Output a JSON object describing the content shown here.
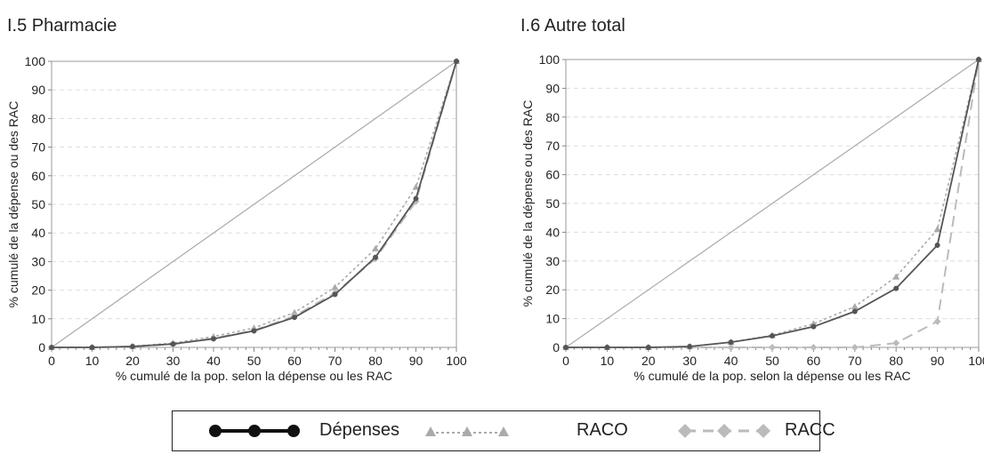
{
  "colors": {
    "depenses": "#555555",
    "raco": "#aaaaaa",
    "racc": "#bbbbbb",
    "diagonal": "#aaaaaa",
    "grid": "#dddddd",
    "axis": "#888888"
  },
  "legend": {
    "items": [
      {
        "label": "Dépenses",
        "style": "solid-circle"
      },
      {
        "label": "RACO",
        "style": "dotted-triangle"
      },
      {
        "label": "RACC",
        "style": "dashed-diamond"
      }
    ]
  },
  "chart_data": [
    {
      "type": "line",
      "title": "I.5 Pharmacie",
      "xlabel": "% cumulé de la pop. selon la dépense ou les RAC",
      "ylabel": "% cumulé de la dépense ou des RAC",
      "xlim": [
        0,
        100
      ],
      "ylim": [
        0,
        100
      ],
      "xticks": [
        0,
        10,
        20,
        30,
        40,
        50,
        60,
        70,
        80,
        90,
        100
      ],
      "yticks": [
        0,
        10,
        20,
        30,
        40,
        50,
        60,
        70,
        80,
        90,
        100
      ],
      "grid": true,
      "x": [
        0,
        10,
        20,
        30,
        40,
        50,
        60,
        70,
        80,
        90,
        100
      ],
      "series": [
        {
          "name": "Dépenses",
          "values": [
            0,
            0,
            0.3,
            1.2,
            3,
            5.8,
            10.5,
            18.5,
            31.5,
            52,
            100
          ]
        },
        {
          "name": "RACO",
          "values": [
            0,
            0,
            0.4,
            1.5,
            3.8,
            6.8,
            12.2,
            21,
            34.5,
            56,
            100
          ]
        },
        {
          "name": "RACC",
          "values": [
            0,
            0,
            0.3,
            1.1,
            3.2,
            5.9,
            11,
            19,
            31,
            51,
            100
          ]
        }
      ]
    },
    {
      "type": "line",
      "title": "I.6 Autre total",
      "xlabel": "% cumulé de la pop. selon la dépense ou les RAC",
      "ylabel": "% cumulé de la dépense ou des RAC",
      "xlim": [
        0,
        100
      ],
      "ylim": [
        0,
        100
      ],
      "xticks": [
        0,
        10,
        20,
        30,
        40,
        50,
        60,
        70,
        80,
        90,
        100
      ],
      "yticks": [
        0,
        10,
        20,
        30,
        40,
        50,
        60,
        70,
        80,
        90,
        100
      ],
      "grid": true,
      "x": [
        0,
        10,
        20,
        30,
        40,
        50,
        60,
        70,
        80,
        90,
        100
      ],
      "series": [
        {
          "name": "Dépenses",
          "values": [
            0,
            0,
            0,
            0.3,
            1.8,
            4,
            7.2,
            12.5,
            20.5,
            35.5,
            100
          ]
        },
        {
          "name": "RACO",
          "values": [
            0,
            0,
            0,
            0.3,
            1.8,
            4.2,
            8.2,
            14.2,
            24.5,
            41,
            100
          ]
        },
        {
          "name": "RACC",
          "values": [
            0,
            0,
            0,
            0,
            0,
            0,
            0,
            0,
            1.5,
            9,
            100
          ]
        }
      ]
    }
  ]
}
